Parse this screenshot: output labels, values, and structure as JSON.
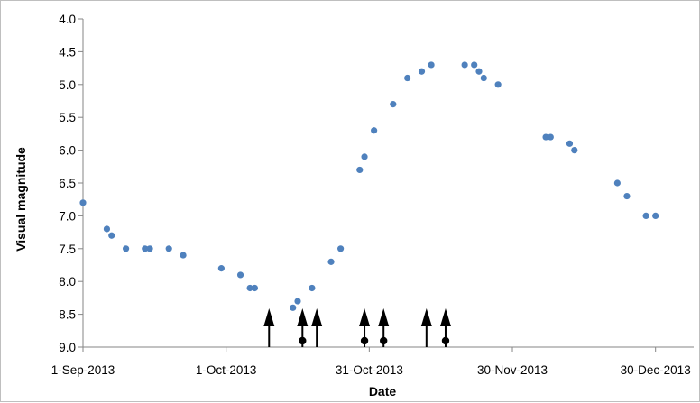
{
  "chart_data": {
    "type": "scatter",
    "title": "",
    "xlabel": "Date",
    "ylabel": "Visual magnitude",
    "x_axis": {
      "type": "date",
      "range": [
        "2013-09-01",
        "2014-01-07"
      ],
      "tick_labels": [
        "1-Sep-2013",
        "1-Oct-2013",
        "31-Oct-2013",
        "30-Nov-2013",
        "30-Dec-2013"
      ],
      "tick_dates": [
        "2013-09-01",
        "2013-10-01",
        "2013-10-31",
        "2013-11-30",
        "2013-12-30"
      ]
    },
    "y_axis": {
      "reversed": true,
      "range": [
        4.0,
        9.0
      ],
      "tick_labels": [
        "4.0",
        "4.5",
        "5.0",
        "5.5",
        "6.0",
        "6.5",
        "7.0",
        "7.5",
        "8.0",
        "8.5",
        "9.0"
      ]
    },
    "grid": false,
    "legend": "none",
    "marker_color": "#4f81bd",
    "arrow_color": "#000000",
    "points": [
      {
        "x": "2013-09-01",
        "y": 6.8
      },
      {
        "x": "2013-09-06",
        "y": 7.2
      },
      {
        "x": "2013-09-07",
        "y": 7.3
      },
      {
        "x": "2013-09-10",
        "y": 7.5
      },
      {
        "x": "2013-09-14",
        "y": 7.5
      },
      {
        "x": "2013-09-15",
        "y": 7.5
      },
      {
        "x": "2013-09-19",
        "y": 7.5
      },
      {
        "x": "2013-09-22",
        "y": 7.6
      },
      {
        "x": "2013-09-30",
        "y": 7.8
      },
      {
        "x": "2013-10-04",
        "y": 7.9
      },
      {
        "x": "2013-10-06",
        "y": 8.1
      },
      {
        "x": "2013-10-07",
        "y": 8.1
      },
      {
        "x": "2013-10-15",
        "y": 8.4
      },
      {
        "x": "2013-10-16",
        "y": 8.3
      },
      {
        "x": "2013-10-19",
        "y": 8.1
      },
      {
        "x": "2013-10-23",
        "y": 7.7
      },
      {
        "x": "2013-10-25",
        "y": 7.5
      },
      {
        "x": "2013-10-29",
        "y": 6.3
      },
      {
        "x": "2013-10-30",
        "y": 6.1
      },
      {
        "x": "2013-11-01",
        "y": 5.7
      },
      {
        "x": "2013-11-05",
        "y": 5.3
      },
      {
        "x": "2013-11-08",
        "y": 4.9
      },
      {
        "x": "2013-11-11",
        "y": 4.8
      },
      {
        "x": "2013-11-13",
        "y": 4.7
      },
      {
        "x": "2013-11-20",
        "y": 4.7
      },
      {
        "x": "2013-11-22",
        "y": 4.7
      },
      {
        "x": "2013-11-23",
        "y": 4.8
      },
      {
        "x": "2013-11-24",
        "y": 4.9
      },
      {
        "x": "2013-11-27",
        "y": 5.0
      },
      {
        "x": "2013-12-07",
        "y": 5.8
      },
      {
        "x": "2013-12-08",
        "y": 5.8
      },
      {
        "x": "2013-12-12",
        "y": 5.9
      },
      {
        "x": "2013-12-13",
        "y": 6.0
      },
      {
        "x": "2013-12-22",
        "y": 6.5
      },
      {
        "x": "2013-12-24",
        "y": 6.7
      },
      {
        "x": "2013-12-28",
        "y": 7.0
      },
      {
        "x": "2013-12-30",
        "y": 7.0
      }
    ],
    "arrow_markers": [
      {
        "x": "2013-10-10",
        "dot": false
      },
      {
        "x": "2013-10-17",
        "dot": true
      },
      {
        "x": "2013-10-20",
        "dot": false
      },
      {
        "x": "2013-10-30",
        "dot": true
      },
      {
        "x": "2013-11-03",
        "dot": true
      },
      {
        "x": "2013-11-12",
        "dot": false
      },
      {
        "x": "2013-11-16",
        "dot": true
      }
    ]
  }
}
